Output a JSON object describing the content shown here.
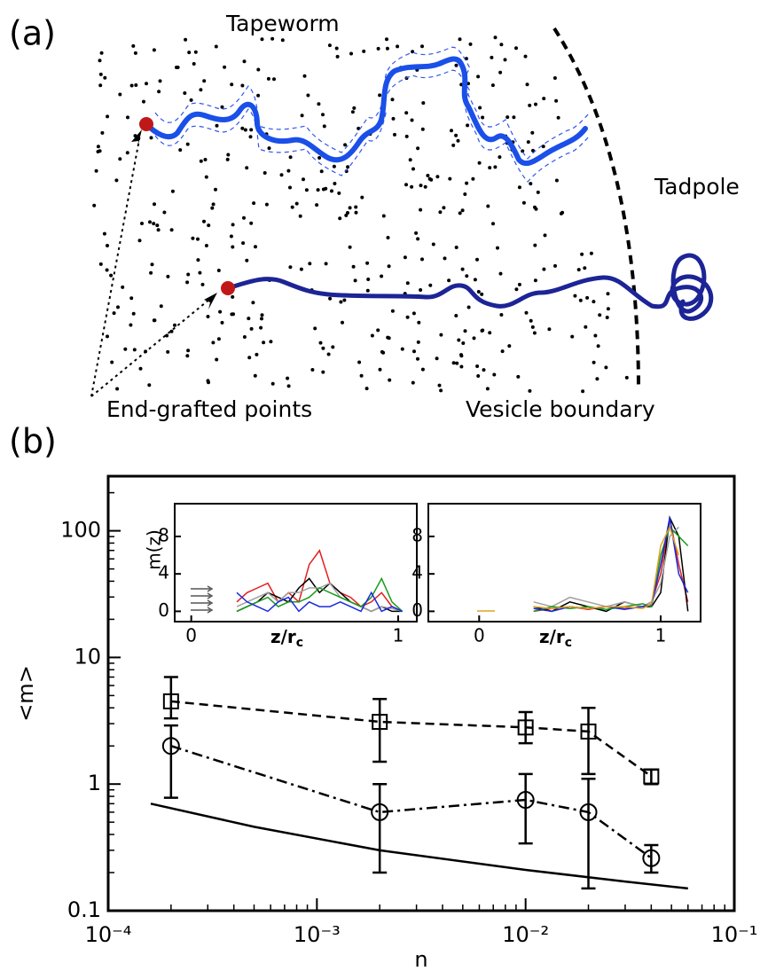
{
  "panel_a": {
    "label": "(a)",
    "tapeworm": "Tapeworm",
    "tadpole": "Tadpole",
    "grafted": "End-grafted points",
    "boundary": "Vesicle boundary"
  },
  "chart_data": [
    {
      "type": "scatter",
      "panel_label": "(b)",
      "xlabel": "n",
      "ylabel": "<m>",
      "xscale": "log",
      "yscale": "log",
      "xlim": [
        0.0001,
        0.1
      ],
      "ylim": [
        0.1,
        270
      ],
      "xticks": [
        {
          "value": 0.0001,
          "label": "10⁻⁴"
        },
        {
          "value": 0.001,
          "label": "10⁻³"
        },
        {
          "value": 0.01,
          "label": "10⁻²"
        },
        {
          "value": 0.1,
          "label": "10⁻¹"
        }
      ],
      "yticks": [
        0.1,
        1,
        10,
        100
      ],
      "series": [
        {
          "marker": "square",
          "color": "#000000",
          "dash": "10 6",
          "x": [
            0.0002,
            0.002,
            0.01,
            0.02,
            0.04
          ],
          "values": [
            4.5,
            3.1,
            2.8,
            2.6,
            1.15
          ],
          "lower": [
            3.3,
            1.5,
            2.1,
            1.2,
            1.0
          ],
          "upper": [
            7.0,
            4.7,
            3.7,
            4.0,
            1.3
          ]
        },
        {
          "marker": "circle",
          "color": "#000000",
          "dash": "12 5 3 5",
          "x": [
            0.0002,
            0.002,
            0.01,
            0.02,
            0.04
          ],
          "values": [
            2.0,
            0.6,
            0.75,
            0.6,
            0.26
          ],
          "lower": [
            0.78,
            0.2,
            0.34,
            0.15,
            0.2
          ],
          "upper": [
            2.9,
            1.0,
            1.2,
            1.1,
            0.33
          ]
        },
        {
          "marker": "none",
          "color": "#000000",
          "x": [
            0.00016,
            0.0005,
            0.002,
            0.01,
            0.03,
            0.06
          ],
          "values": [
            0.7,
            0.46,
            0.3,
            0.21,
            0.17,
            0.15
          ]
        }
      ]
    },
    {
      "type": "line",
      "ylabel": "m(z)",
      "xlabel": "z/r",
      "xlabel_sub": "c",
      "xlim": [
        -0.08,
        1.09
      ],
      "ylim": [
        -1.1,
        11.5
      ],
      "xticks": [
        0,
        1
      ],
      "yticks": [
        0,
        4,
        8
      ],
      "x": [
        0.22,
        0.27,
        0.32,
        0.37,
        0.42,
        0.47,
        0.52,
        0.57,
        0.62,
        0.67,
        0.72,
        0.77,
        0.82,
        0.87,
        0.92,
        0.97,
        1.02
      ],
      "series": [
        {
          "color": "#e02020",
          "values": [
            1,
            2,
            2.5,
            3,
            1,
            2,
            1,
            5,
            6.5,
            3,
            2,
            1.5,
            0.5,
            1,
            2,
            0.5,
            0
          ]
        },
        {
          "color": "#000000",
          "values": [
            0,
            0.5,
            1,
            2,
            1.5,
            1,
            2.5,
            3.5,
            2,
            3,
            2,
            1,
            0.5,
            0,
            0.5,
            0,
            0
          ]
        },
        {
          "color": "#a0a0a0",
          "values": [
            0.5,
            1,
            1.5,
            2,
            1,
            2,
            2,
            2.5,
            2.5,
            3,
            1.5,
            1,
            0.5,
            0,
            0.5,
            0.3,
            0
          ]
        },
        {
          "color": "#1a9a1a",
          "values": [
            0,
            0.5,
            1,
            1.5,
            0.5,
            1,
            1,
            1.5,
            2.5,
            2,
            1.5,
            1,
            0.5,
            1.5,
            3.5,
            1,
            0
          ]
        },
        {
          "color": "#1a2ae0",
          "values": [
            2,
            1,
            0.5,
            0,
            1,
            1.5,
            0,
            1,
            0.5,
            0.5,
            1,
            0.5,
            0,
            2,
            0,
            0.5,
            0
          ]
        }
      ]
    },
    {
      "type": "line",
      "xlabel": "z/r",
      "xlabel_sub": "c",
      "xlim": [
        -0.28,
        1.22
      ],
      "ylim": [
        -1.1,
        11.5
      ],
      "xticks": [
        0,
        1
      ],
      "yticks": [
        0,
        4,
        8
      ],
      "x": [
        0.3,
        0.4,
        0.5,
        0.6,
        0.7,
        0.8,
        0.9,
        0.95,
        1.0,
        1.05,
        1.1,
        1.15
      ],
      "series": [
        {
          "color": "#e02020",
          "values": [
            0,
            0.3,
            0.5,
            0.2,
            0.5,
            0.3,
            0.5,
            1,
            4,
            10,
            5,
            1
          ]
        },
        {
          "color": "#000000",
          "values": [
            0.5,
            0,
            1,
            0.5,
            0,
            1,
            0.5,
            0.5,
            2,
            10,
            8,
            0
          ]
        },
        {
          "color": "#a0a0a0",
          "values": [
            1,
            0.5,
            1.5,
            1,
            0.5,
            1,
            0.5,
            1,
            3,
            8,
            9,
            null
          ]
        },
        {
          "color": "#1a9a1a",
          "values": [
            0,
            0.5,
            0.3,
            0.5,
            0.2,
            0.5,
            0.8,
            0.5,
            6,
            9,
            8,
            7
          ]
        },
        {
          "color": "#1a2ae0",
          "values": [
            0.3,
            0,
            0.5,
            0.3,
            0.5,
            0.2,
            0.5,
            0.7,
            5,
            10,
            4,
            2
          ]
        },
        {
          "color": "#e0a020",
          "values": [
            0.5,
            0.3,
            0.5,
            0.3,
            0.5,
            0.5,
            0.3,
            0.8,
            7,
            9,
            6,
            null
          ]
        }
      ]
    }
  ]
}
